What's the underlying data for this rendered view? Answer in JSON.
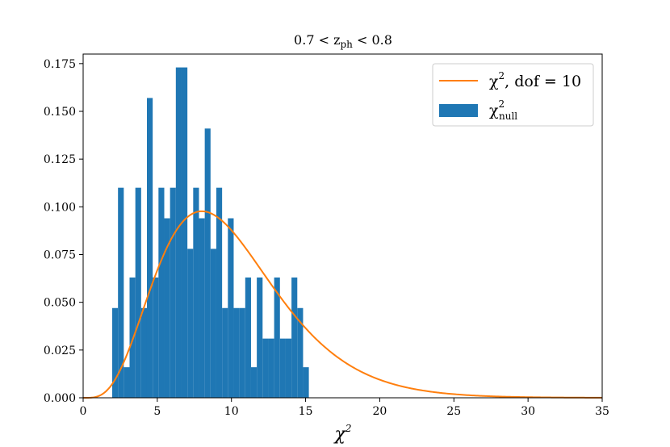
{
  "chart_data": {
    "type": "bar",
    "title": {
      "main": "0.7 < z",
      "sub": "ph",
      "tail": " < 0.8"
    },
    "xlabel": {
      "main": "χ",
      "sup": "2"
    },
    "ylabel": "",
    "xlim": [
      0,
      35
    ],
    "ylim": [
      0,
      0.18
    ],
    "xticks": [
      0,
      5,
      10,
      15,
      20,
      25,
      30,
      35
    ],
    "xtick_labels": [
      "0",
      "5",
      "10",
      "15",
      "20",
      "25",
      "30",
      "35"
    ],
    "yticks": [
      0,
      0.025,
      0.05,
      0.075,
      0.1,
      0.125,
      0.15,
      0.175
    ],
    "ytick_labels": [
      "0.000",
      "0.025",
      "0.050",
      "0.075",
      "0.100",
      "0.125",
      "0.150",
      "0.175"
    ],
    "grid": false,
    "legend_position": "top-right",
    "histogram": {
      "name": {
        "main": "χ",
        "sup": "2",
        "sub": "null"
      },
      "color": "#1f77b4",
      "bin_edges": [
        1.96,
        2.35,
        2.74,
        3.13,
        3.52,
        3.91,
        4.3,
        4.69,
        5.08,
        5.47,
        5.86,
        6.25,
        6.64,
        7.03,
        7.42,
        7.81,
        8.2,
        8.59,
        8.98,
        9.37,
        9.76,
        10.15,
        10.54,
        10.93,
        11.32,
        11.71,
        12.1,
        12.49,
        12.88,
        13.27,
        13.66,
        14.05,
        14.44,
        14.83,
        15.22
      ],
      "values": [
        0.047,
        0.11,
        0.016,
        0.063,
        0.11,
        0.047,
        0.157,
        0.063,
        0.11,
        0.094,
        0.11,
        0.173,
        0.173,
        0.078,
        0.11,
        0.094,
        0.141,
        0.078,
        0.11,
        0.047,
        0.094,
        0.047,
        0.047,
        0.063,
        0.016,
        0.063,
        0.031,
        0.031,
        0.063,
        0.031,
        0.031,
        0.063,
        0.047,
        0.016
      ]
    },
    "series": [
      {
        "name": {
          "main": "χ",
          "sup": "2",
          "tail": ", dof = 10"
        },
        "type": "line",
        "color": "#ff7f0e",
        "dof": 10
      }
    ]
  }
}
